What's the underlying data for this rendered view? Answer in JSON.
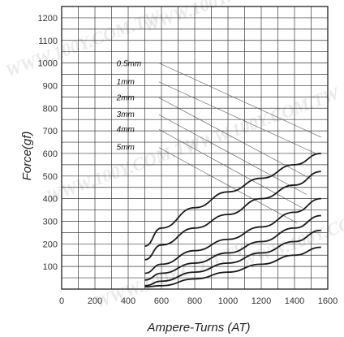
{
  "watermark": "WWW.100Y.COM.TW",
  "chart_data": {
    "type": "line",
    "xlabel": "Ampere-Turns (AT)",
    "ylabel": "Force(gf)",
    "xlim": [
      0,
      1600
    ],
    "ylim": [
      0,
      1250
    ],
    "x_ticks": [
      "0",
      "200",
      "400",
      "600",
      "800",
      "1000",
      "1200",
      "1400",
      "1600"
    ],
    "y_ticks": [
      "100",
      "200",
      "300",
      "400",
      "500",
      "600",
      "700",
      "800",
      "900",
      "1000",
      "1100",
      "1200"
    ],
    "grid": true,
    "line_color": "#1a1a1a",
    "series": [
      {
        "name": "0.5mm",
        "x": [
          500,
          600,
          800,
          1000,
          1200,
          1400,
          1560
        ],
        "y": [
          190,
          270,
          360,
          430,
          490,
          550,
          600
        ]
      },
      {
        "name": "1mm",
        "x": [
          500,
          600,
          800,
          1000,
          1200,
          1400,
          1560
        ],
        "y": [
          130,
          195,
          270,
          330,
          400,
          460,
          520
        ]
      },
      {
        "name": "2mm",
        "x": [
          500,
          600,
          800,
          1000,
          1200,
          1400,
          1560
        ],
        "y": [
          70,
          110,
          170,
          220,
          275,
          340,
          400
        ]
      },
      {
        "name": "3mm",
        "x": [
          500,
          600,
          800,
          1000,
          1200,
          1400,
          1560
        ],
        "y": [
          40,
          70,
          115,
          160,
          210,
          270,
          325
        ]
      },
      {
        "name": "4mm",
        "x": [
          500,
          600,
          800,
          1000,
          1200,
          1400,
          1560
        ],
        "y": [
          15,
          35,
          75,
          115,
          160,
          210,
          260
        ]
      },
      {
        "name": "5mm",
        "x": [
          500,
          600,
          800,
          1000,
          1200,
          1400,
          1560
        ],
        "y": [
          10,
          15,
          45,
          75,
          110,
          150,
          185
        ]
      }
    ]
  }
}
